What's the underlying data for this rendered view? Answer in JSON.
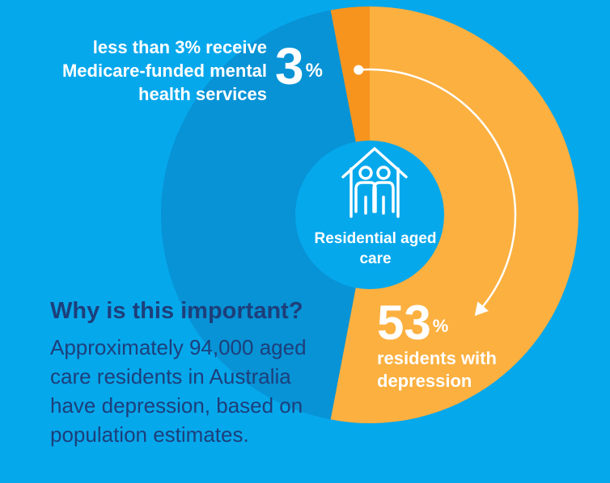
{
  "chart_data": {
    "type": "pie",
    "variant": "donut",
    "slices": [
      {
        "label": "Medicare-funded mental health services",
        "value": 3,
        "color": "#f7941d"
      },
      {
        "label": "residents with depression",
        "value": 53,
        "color": "#fbb040"
      },
      {
        "label": "",
        "value": 44,
        "color": "#0793d6"
      }
    ],
    "center_label": "Residential aged care",
    "annotations": {
      "three_pct": {
        "value": "3",
        "unit": "%",
        "text": "less than 3% receive Medicare-funded mental health services"
      },
      "fifty_three_pct": {
        "value": "53",
        "unit": "%",
        "text": "residents with depression"
      }
    }
  },
  "info": {
    "heading": "Why is this important?",
    "body": "Approximately 94,000 aged care residents in Australia have depression, based on population estimates."
  },
  "colors": {
    "background": "#06a8ec",
    "ring_track": "#0793d6",
    "center_circle": "#06a8ec",
    "text_dark": "#1d3f7a",
    "text_light": "#ffffff"
  },
  "icons": {
    "center": "house-with-two-people-icon"
  }
}
